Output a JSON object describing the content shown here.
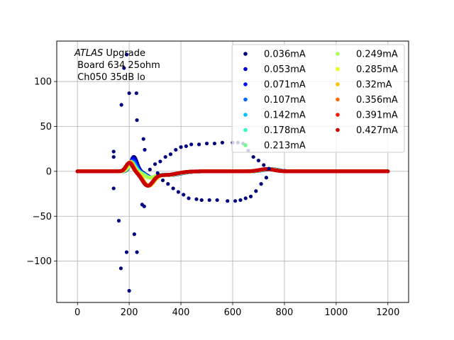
{
  "chart_data": {
    "type": "scatter",
    "annotation": [
      "ATLAS",
      " Upgrade",
      " Board 634 25ohm",
      " Ch050 35dB lo"
    ],
    "xlim": [
      -80,
      1280
    ],
    "ylim": [
      -146,
      145
    ],
    "xticks": [
      0,
      200,
      400,
      600,
      800,
      1000,
      1200
    ],
    "yticks": [
      -100,
      -50,
      0,
      50,
      100
    ],
    "grid": true,
    "legend_position": "top-right",
    "series": [
      {
        "name": "0.036mA",
        "color": "#00007f",
        "amp": 1.0
      },
      {
        "name": "0.053mA",
        "color": "#0000c8",
        "amp": 0.9
      },
      {
        "name": "0.071mA",
        "color": "#0010ff",
        "amp": 0.8
      },
      {
        "name": "0.107mA",
        "color": "#0068ff",
        "amp": 0.7
      },
      {
        "name": "0.142mA",
        "color": "#00c0ff",
        "amp": 0.6
      },
      {
        "name": "0.178mA",
        "color": "#2cffca",
        "amp": 0.5
      },
      {
        "name": "0.213mA",
        "color": "#6dff8a",
        "amp": 0.45
      },
      {
        "name": "0.249mA",
        "color": "#a7ff4f",
        "amp": 0.42
      },
      {
        "name": "0.285mA",
        "color": "#e4ff13",
        "amp": 0.4
      },
      {
        "name": "0.32mA",
        "color": "#ffc400",
        "amp": 0.38
      },
      {
        "name": "0.356mA",
        "color": "#ff6b00",
        "amp": 0.37
      },
      {
        "name": "0.391mA",
        "color": "#f41800",
        "amp": 0.36
      },
      {
        "name": "0.427mA",
        "color": "#c80000",
        "amp": 0.35
      }
    ],
    "outliers": {
      "color": "#00007f",
      "points": [
        [
          140,
          22
        ],
        [
          140,
          16
        ],
        [
          140,
          -19
        ],
        [
          160,
          -55
        ],
        [
          168,
          -108
        ],
        [
          170,
          74
        ],
        [
          180,
          115
        ],
        [
          190,
          130
        ],
        [
          190,
          -90
        ],
        [
          200,
          87
        ],
        [
          200,
          -133
        ],
        [
          220,
          -70
        ],
        [
          228,
          87
        ],
        [
          230,
          57
        ],
        [
          230,
          -90
        ],
        [
          250,
          -37
        ],
        [
          255,
          36
        ],
        [
          258,
          -39
        ],
        [
          260,
          24
        ],
        [
          280,
          2
        ],
        [
          300,
          8
        ],
        [
          310,
          -2
        ],
        [
          320,
          11
        ],
        [
          330,
          -10
        ],
        [
          340,
          16
        ],
        [
          350,
          -14
        ],
        [
          360,
          19
        ],
        [
          370,
          -19
        ],
        [
          380,
          24
        ],
        [
          390,
          -23
        ],
        [
          400,
          27
        ],
        [
          410,
          -26
        ],
        [
          420,
          28
        ],
        [
          430,
          -30
        ],
        [
          440,
          30
        ],
        [
          460,
          -31
        ],
        [
          470,
          30
        ],
        [
          480,
          -32
        ],
        [
          500,
          31
        ],
        [
          510,
          -32
        ],
        [
          530,
          31
        ],
        [
          540,
          -32
        ],
        [
          560,
          32
        ],
        [
          580,
          -33
        ],
        [
          600,
          32
        ],
        [
          610,
          -33
        ],
        [
          620,
          32
        ],
        [
          630,
          -32
        ],
        [
          640,
          31
        ],
        [
          650,
          -30
        ],
        [
          660,
          23
        ],
        [
          670,
          -28
        ],
        [
          680,
          16
        ],
        [
          690,
          -22
        ],
        [
          700,
          12
        ],
        [
          710,
          -14
        ],
        [
          720,
          7
        ],
        [
          730,
          -7
        ],
        [
          740,
          3
        ]
      ]
    }
  }
}
